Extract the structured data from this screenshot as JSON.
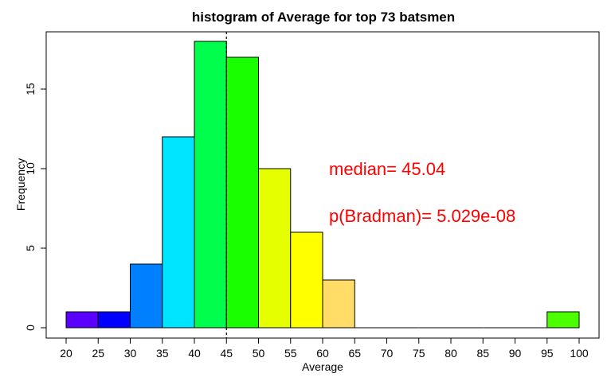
{
  "chart_data": {
    "type": "bar",
    "title": "histogram of Average for top 73 batsmen",
    "xlabel": "Average",
    "ylabel": "Frequency",
    "xlim": [
      20,
      100
    ],
    "ylim": [
      0,
      18
    ],
    "x_ticks": [
      20,
      25,
      30,
      35,
      40,
      45,
      50,
      55,
      60,
      65,
      70,
      75,
      80,
      85,
      90,
      95,
      100
    ],
    "y_ticks": [
      0,
      5,
      10,
      15
    ],
    "bin_width": 5,
    "bins": [
      {
        "start": 20,
        "end": 25,
        "count": 1,
        "color": "#5a00ff"
      },
      {
        "start": 25,
        "end": 30,
        "count": 1,
        "color": "#0000ff"
      },
      {
        "start": 30,
        "end": 35,
        "count": 4,
        "color": "#0080ff"
      },
      {
        "start": 35,
        "end": 40,
        "count": 12,
        "color": "#00e5ff"
      },
      {
        "start": 40,
        "end": 45,
        "count": 18,
        "color": "#00ff4d"
      },
      {
        "start": 45,
        "end": 50,
        "count": 17,
        "color": "#1aff00"
      },
      {
        "start": 50,
        "end": 55,
        "count": 10,
        "color": "#e6ff00"
      },
      {
        "start": 55,
        "end": 60,
        "count": 6,
        "color": "#ffff00"
      },
      {
        "start": 60,
        "end": 65,
        "count": 3,
        "color": "#ffdd66"
      },
      {
        "start": 65,
        "end": 70,
        "count": 0,
        "color": "#ffdd66"
      },
      {
        "start": 70,
        "end": 75,
        "count": 0,
        "color": "#ffdd66"
      },
      {
        "start": 75,
        "end": 80,
        "count": 0,
        "color": "#ffdd66"
      },
      {
        "start": 80,
        "end": 85,
        "count": 0,
        "color": "#ffdd66"
      },
      {
        "start": 85,
        "end": 90,
        "count": 0,
        "color": "#ffdd66"
      },
      {
        "start": 90,
        "end": 95,
        "count": 0,
        "color": "#ffdd66"
      },
      {
        "start": 95,
        "end": 100,
        "count": 1,
        "color": "#4cff00"
      }
    ],
    "reference_line": {
      "x": 45,
      "style": "dashed"
    },
    "annotations": [
      {
        "text": "median= 45.04",
        "color": "#ff0000"
      },
      {
        "text": "p(Bradman)= 5.029e-08",
        "color": "#ff0000"
      }
    ],
    "grid": false,
    "legend": "none"
  }
}
